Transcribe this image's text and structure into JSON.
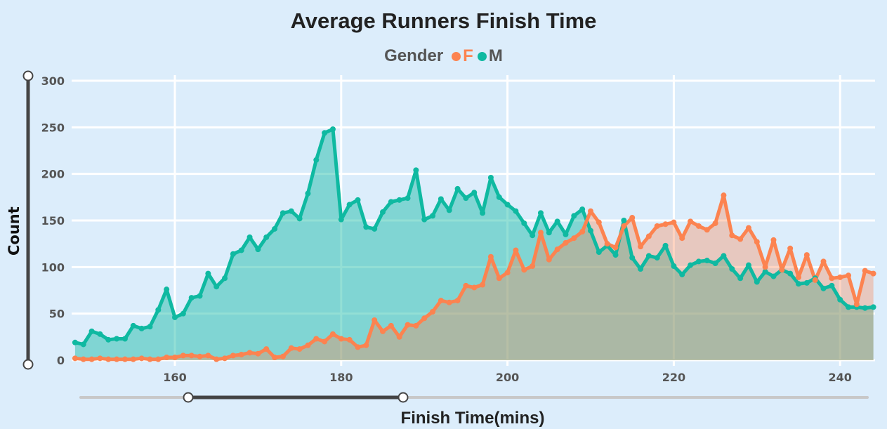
{
  "header": {
    "title": "Average Runners Finish Time",
    "legend_title": "Gender",
    "legend_items": [
      {
        "label": "F",
        "color": "#fc8350"
      },
      {
        "label": "M",
        "color": "#0fb9a1"
      }
    ]
  },
  "axes": {
    "y_label": "Count",
    "x_label": "Finish Time(mins)",
    "y_ticks": [
      "0",
      "50",
      "100",
      "150",
      "200",
      "250",
      "300"
    ],
    "x_ticks": [
      "160",
      "180",
      "200",
      "220",
      "240"
    ]
  },
  "colors": {
    "background": "#dcedfb",
    "f_line": "#fc8350",
    "m_line": "#0fb9a1",
    "f_fill": "rgba(252,131,80,0.35)",
    "m_fill": "rgba(15,185,161,0.45)",
    "grid": "#ffffff",
    "slider_track": "#c8c8c8",
    "slider_active": "#444444"
  },
  "sliders": {
    "y_range": {
      "min": 0,
      "max": 300
    },
    "x_range": {
      "start": 161.6,
      "end": 187.5
    }
  },
  "chart_data": {
    "type": "area",
    "title": "Average Runners Finish Time",
    "xlabel": "Finish Time(mins)",
    "ylabel": "Count",
    "xlim": [
      148,
      244
    ],
    "ylim": [
      0,
      300
    ],
    "grid": true,
    "legend": {
      "title": "Gender",
      "position": "top"
    },
    "x": [
      148,
      149,
      150,
      151,
      152,
      153,
      154,
      155,
      156,
      157,
      158,
      159,
      160,
      161,
      162,
      163,
      164,
      165,
      166,
      167,
      168,
      169,
      170,
      171,
      172,
      173,
      174,
      175,
      176,
      177,
      178,
      179,
      180,
      181,
      182,
      183,
      184,
      185,
      186,
      187,
      188,
      189,
      190,
      191,
      192,
      193,
      194,
      195,
      196,
      197,
      198,
      199,
      200,
      201,
      202,
      203,
      204,
      205,
      206,
      207,
      208,
      209,
      210,
      211,
      212,
      213,
      214,
      215,
      216,
      217,
      218,
      219,
      220,
      221,
      222,
      223,
      224,
      225,
      226,
      227,
      228,
      229,
      230,
      231,
      232,
      233,
      234,
      235,
      236,
      237,
      238,
      239,
      240,
      241,
      242,
      243,
      244
    ],
    "series": [
      {
        "name": "M",
        "color": "#0fb9a1",
        "values": [
          19,
          17,
          31,
          28,
          22,
          23,
          23,
          37,
          34,
          36,
          54,
          76,
          46,
          50,
          67,
          69,
          93,
          79,
          88,
          114,
          118,
          132,
          119,
          132,
          141,
          158,
          160,
          152,
          179,
          215,
          244,
          248,
          151,
          167,
          172,
          143,
          141,
          159,
          170,
          172,
          174,
          204,
          151,
          155,
          173,
          161,
          184,
          174,
          180,
          158,
          196,
          175,
          167,
          160,
          147,
          134,
          158,
          137,
          149,
          135,
          155,
          162,
          139,
          116,
          123,
          113,
          150,
          110,
          98,
          112,
          110,
          123,
          101,
          92,
          102,
          106,
          107,
          104,
          112,
          98,
          88,
          102,
          84,
          95,
          90,
          97,
          93,
          82,
          83,
          88,
          77,
          80,
          65,
          57,
          57,
          56,
          57
        ]
      },
      {
        "name": "F",
        "color": "#fc8350",
        "values": [
          2,
          1,
          1,
          2,
          1,
          1,
          1,
          1,
          2,
          1,
          1,
          3,
          3,
          5,
          5,
          4,
          5,
          1,
          2,
          5,
          6,
          8,
          7,
          12,
          3,
          4,
          13,
          12,
          16,
          23,
          20,
          28,
          23,
          22,
          14,
          16,
          43,
          31,
          37,
          25,
          38,
          37,
          45,
          52,
          64,
          62,
          64,
          80,
          78,
          81,
          111,
          88,
          94,
          118,
          97,
          101,
          137,
          108,
          119,
          126,
          131,
          138,
          160,
          148,
          125,
          121,
          144,
          153,
          122,
          133,
          144,
          146,
          148,
          131,
          149,
          144,
          140,
          147,
          177,
          134,
          130,
          142,
          127,
          100,
          129,
          97,
          120,
          89,
          113,
          86,
          106,
          88,
          89,
          91,
          60,
          96,
          93
        ]
      }
    ]
  }
}
